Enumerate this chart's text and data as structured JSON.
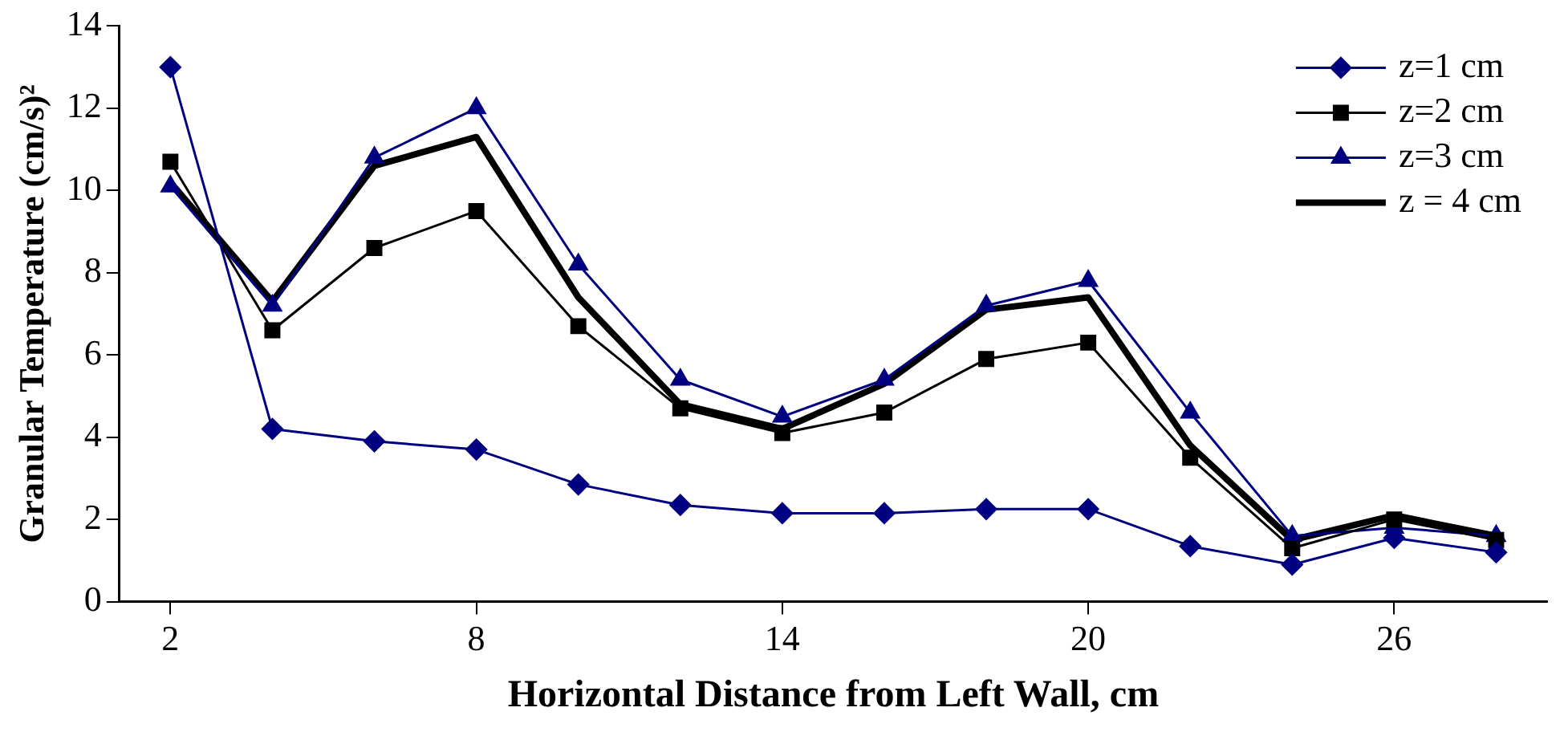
{
  "chart_data": {
    "type": "line",
    "xlabel": "Horizontal Distance from Left Wall, cm",
    "ylabel": "Granular Temperature (cm/s)²",
    "x": [
      2,
      4,
      6,
      8,
      10,
      12,
      14,
      16,
      18,
      20,
      22,
      24,
      26,
      28
    ],
    "xlim": [
      1,
      29
    ],
    "xticks": [
      2,
      8,
      14,
      20,
      26
    ],
    "ylim": [
      0,
      14
    ],
    "yticks": [
      0,
      2,
      4,
      6,
      8,
      10,
      12,
      14
    ],
    "grid": false,
    "legend": "top right",
    "series": [
      {
        "name": "z=1 cm",
        "color": "#000080",
        "marker": "diamond",
        "values": [
          13.0,
          4.2,
          3.9,
          3.7,
          2.85,
          2.35,
          2.15,
          2.15,
          2.25,
          2.25,
          1.35,
          0.9,
          1.55,
          1.2
        ]
      },
      {
        "name": "z=2 cm",
        "color": "#000000",
        "marker": "square",
        "values": [
          10.7,
          6.6,
          8.6,
          9.5,
          6.7,
          4.7,
          4.1,
          4.6,
          5.9,
          6.3,
          3.5,
          1.3,
          2.0,
          1.5
        ]
      },
      {
        "name": "z=3 cm",
        "color": "#000080",
        "marker": "triangle",
        "values": [
          10.1,
          7.2,
          10.8,
          12.0,
          8.2,
          5.4,
          4.5,
          5.4,
          7.2,
          7.8,
          4.6,
          1.6,
          1.8,
          1.6
        ]
      },
      {
        "name": "z = 4 cm",
        "color": "#000000",
        "marker": "none",
        "values": [
          10.2,
          7.3,
          10.6,
          11.3,
          7.4,
          4.8,
          4.2,
          5.3,
          7.1,
          7.4,
          3.8,
          1.5,
          2.1,
          1.6
        ]
      }
    ]
  }
}
